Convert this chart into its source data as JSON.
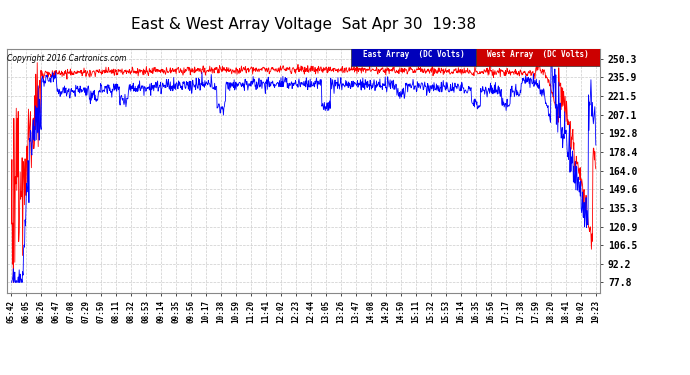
{
  "title": "East & West Array Voltage  Sat Apr 30  19:38",
  "copyright": "Copyright 2016 Cartronics.com",
  "legend_east": "East Array  (DC Volts)",
  "legend_west": "West Array  (DC Volts)",
  "east_color": "#0000ff",
  "west_color": "#ff0000",
  "legend_east_bg": "#0000bb",
  "legend_west_bg": "#cc0000",
  "bg_color": "#ffffff",
  "plot_bg_color": "#ffffff",
  "grid_color": "#cccccc",
  "title_fontsize": 11,
  "yticks": [
    77.8,
    92.2,
    106.5,
    120.9,
    135.3,
    149.6,
    164.0,
    178.4,
    192.8,
    207.1,
    221.5,
    235.9,
    250.3
  ],
  "ymin": 70.0,
  "ymax": 258.0,
  "xtick_labels": [
    "05:42",
    "06:05",
    "06:26",
    "06:47",
    "07:08",
    "07:29",
    "07:50",
    "08:11",
    "08:32",
    "08:53",
    "09:14",
    "09:35",
    "09:56",
    "10:17",
    "10:38",
    "10:59",
    "11:20",
    "11:41",
    "12:02",
    "12:23",
    "12:44",
    "13:05",
    "13:26",
    "13:47",
    "14:08",
    "14:29",
    "14:50",
    "15:11",
    "15:32",
    "15:53",
    "16:14",
    "16:35",
    "16:56",
    "17:17",
    "17:38",
    "17:59",
    "18:20",
    "18:41",
    "19:02",
    "19:23"
  ]
}
